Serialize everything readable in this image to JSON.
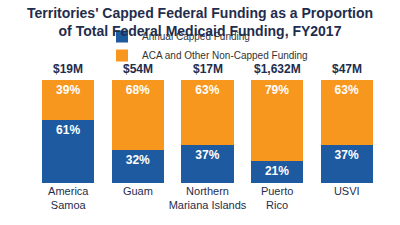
{
  "chart_data": {
    "type": "bar",
    "title": "Territories' Capped Federal Funding as a Proportion\nof Total Federal Medicaid Funding, FY2017",
    "categories": [
      "America Samoa",
      "Guam",
      "Northern Mariana Islands",
      "Puerto Rico",
      "USVI"
    ],
    "series": [
      {
        "name": "Annual Capped Funding",
        "color": "#1e5aa0",
        "values": [
          61,
          32,
          37,
          21,
          37
        ],
        "value_labels": [
          "61%",
          "32%",
          "37%",
          "21%",
          "37%"
        ]
      },
      {
        "name": "ACA and Other Non-Capped Funding",
        "color": "#f7971e",
        "values": [
          39,
          68,
          63,
          79,
          63
        ],
        "value_labels": [
          "39%",
          "68%",
          "63%",
          "79%",
          "63%"
        ]
      }
    ],
    "totals": {
      "values": [
        19,
        54,
        17,
        1632,
        47
      ],
      "value_labels": [
        "$19M",
        "$54M",
        "$17M",
        "$1,632M",
        "$47M"
      ]
    },
    "ylim": [
      0,
      100
    ],
    "stacked": true,
    "data_labels": true,
    "legend": "top",
    "grid": false,
    "tick_labels": "x"
  }
}
